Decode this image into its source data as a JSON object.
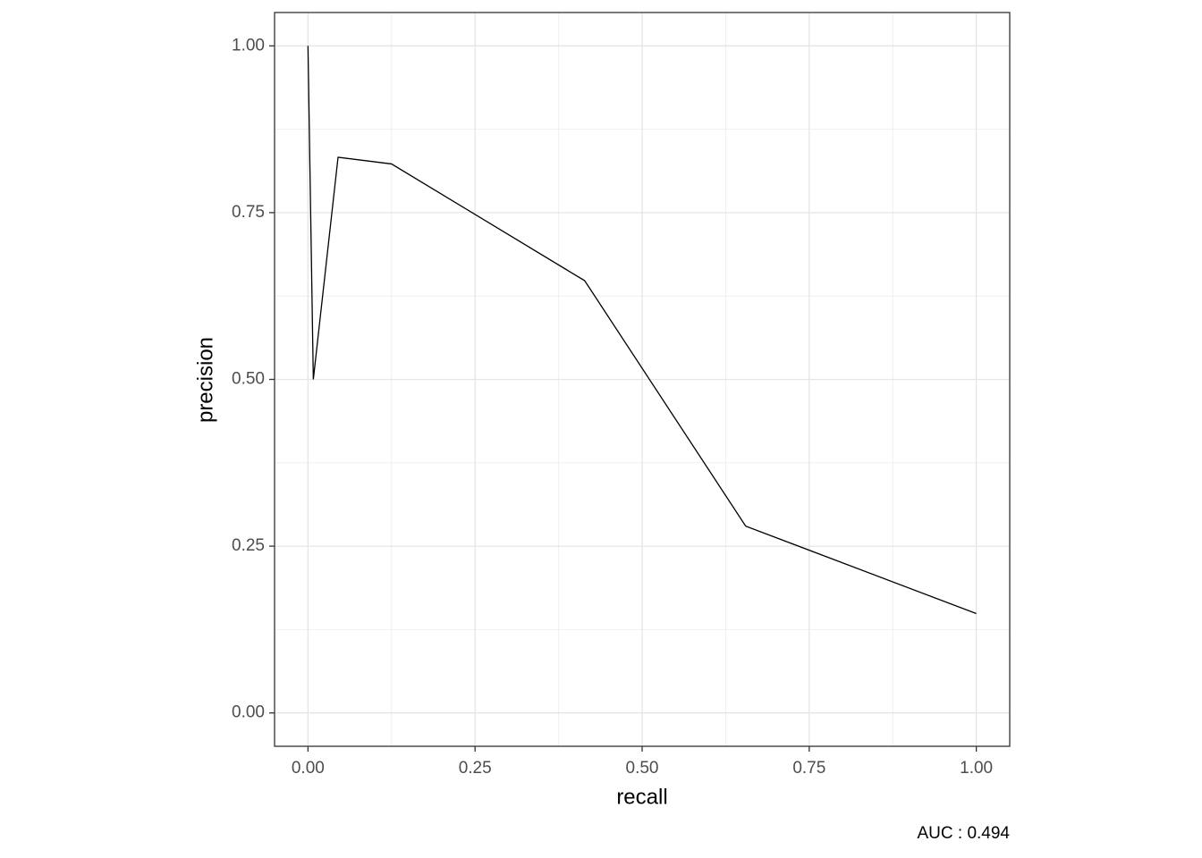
{
  "chart_data": {
    "type": "line",
    "x_label": "recall",
    "y_label": "precision",
    "caption": "AUC : 0.494",
    "x": [
      0,
      0.008,
      0.045,
      0.125,
      0.414,
      0.655,
      1
    ],
    "series": [
      {
        "color": "#000000",
        "values": [
          1,
          0.5,
          0.833,
          0.823,
          0.648,
          0.28,
          0.149
        ]
      }
    ],
    "xlim": [
      -0.05,
      1.05
    ],
    "ylim": [
      -0.05,
      1.05
    ],
    "xticks": [
      {
        "value": 0,
        "label": "0.00"
      },
      {
        "value": 0.25,
        "label": "0.25"
      },
      {
        "value": 0.5,
        "label": "0.50"
      },
      {
        "value": 0.75,
        "label": "0.75"
      },
      {
        "value": 1,
        "label": "1.00"
      }
    ],
    "yticks": [
      {
        "value": 0,
        "label": "0.00"
      },
      {
        "value": 0.25,
        "label": "0.25"
      },
      {
        "value": 0.5,
        "label": "0.50"
      },
      {
        "value": 0.75,
        "label": "0.75"
      },
      {
        "value": 1,
        "label": "1.00"
      }
    ],
    "grid": true
  }
}
